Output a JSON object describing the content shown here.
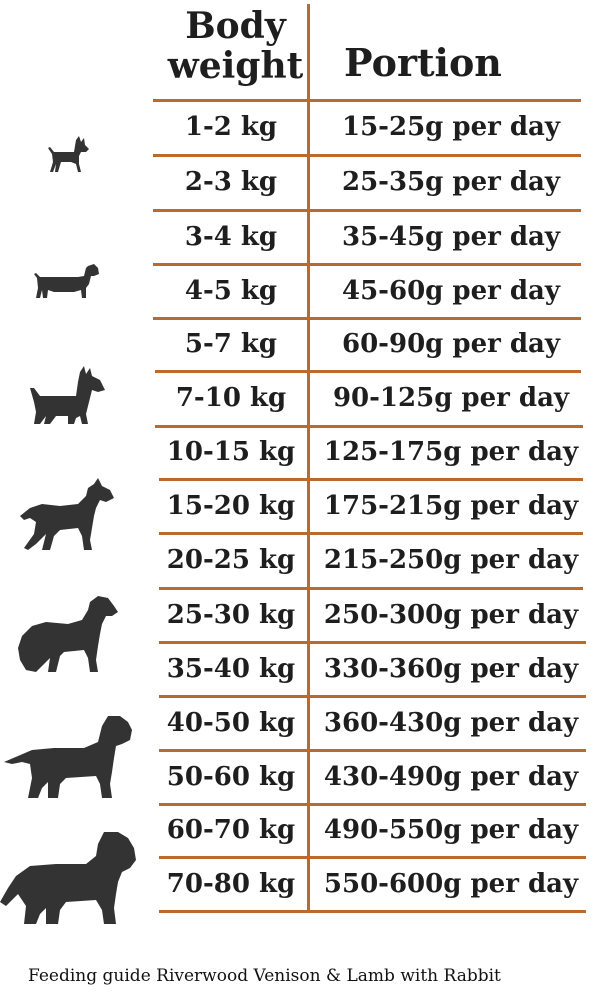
{
  "header": {
    "weight_line1": "Body",
    "weight_line2": "weight",
    "portion": "Portion"
  },
  "rows": [
    {
      "weight": "1-2 kg",
      "portion": "15-25g per day"
    },
    {
      "weight": "2-3 kg",
      "portion": "25-35g per day"
    },
    {
      "weight": "3-4 kg",
      "portion": "35-45g per day"
    },
    {
      "weight": "4-5 kg",
      "portion": "45-60g per day"
    },
    {
      "weight": "5-7 kg",
      "portion": "60-90g per day"
    },
    {
      "weight": "7-10 kg",
      "portion": "90-125g per day"
    },
    {
      "weight": "10-15 kg",
      "portion": "125-175g per day"
    },
    {
      "weight": "15-20 kg",
      "portion": "175-215g per day"
    },
    {
      "weight": "20-25 kg",
      "portion": "215-250g per day"
    },
    {
      "weight": "25-30 kg",
      "portion": "250-300g per day"
    },
    {
      "weight": "35-40 kg",
      "portion": "330-360g per day"
    },
    {
      "weight": "40-50 kg",
      "portion": "360-430g per day"
    },
    {
      "weight": "50-60 kg",
      "portion": "430-490g per day"
    },
    {
      "weight": "60-70 kg",
      "portion": "490-550g per day"
    },
    {
      "weight": "70-80 kg",
      "portion": "550-600g per day"
    }
  ],
  "caption": "Feeding guide Riverwood Venison & Lamb with Rabbit",
  "colors": {
    "divider": "#b96a2c",
    "text": "#1e1e1e",
    "dog": "#333333"
  },
  "icons": [
    "chihuahua-icon",
    "dachshund-icon",
    "terrier-icon",
    "shepherd-dog-icon",
    "retriever-dog-icon",
    "mastiff-dog-icon",
    "large-dog-icon"
  ]
}
